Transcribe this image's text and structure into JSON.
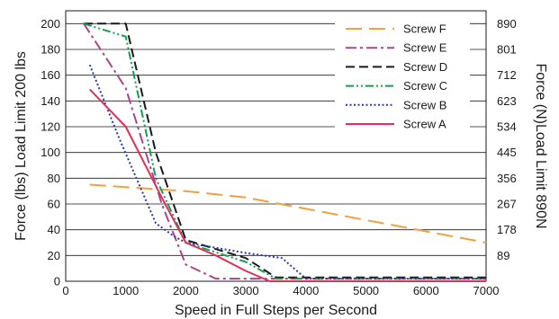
{
  "chart_data": {
    "type": "line",
    "xlabel": "Speed in Full Steps per Second",
    "ylabel": "Force (lbs) Load Limit 200 lbs",
    "y2label": "Force (N)Load Limit 890N",
    "xlim": [
      0,
      7000
    ],
    "ylim": [
      0,
      210
    ],
    "x_ticks": [
      0,
      1000,
      2000,
      3000,
      4000,
      5000,
      6000,
      7000
    ],
    "y_ticks": [
      0,
      20,
      40,
      60,
      80,
      100,
      120,
      140,
      160,
      180,
      200
    ],
    "y2_ticks": [
      {
        "label": "890",
        "value": 200
      },
      {
        "label": "801",
        "value": 180
      },
      {
        "label": "712",
        "value": 160
      },
      {
        "label": "623",
        "value": 140
      },
      {
        "label": "534",
        "value": 120
      },
      {
        "label": "445",
        "value": 100
      },
      {
        "label": "356",
        "value": 80
      },
      {
        "label": "267",
        "value": 60
      },
      {
        "label": "178",
        "value": 40
      },
      {
        "label": "89",
        "value": 20
      }
    ],
    "grid": true,
    "legend_position": "top-right",
    "series": [
      {
        "name": "Screw F",
        "color": "#f0a040",
        "dash": "dashed-long",
        "x": [
          400,
          2000,
          3000,
          7000
        ],
        "y": [
          75,
          70,
          65,
          30
        ]
      },
      {
        "name": "Screw E",
        "color": "#a8468c",
        "dash": "dash-dot",
        "x": [
          300,
          1000,
          1600,
          2000,
          2500,
          3000,
          7000
        ],
        "y": [
          200,
          150,
          60,
          13,
          2,
          2,
          2
        ]
      },
      {
        "name": "Screw D",
        "color": "#1a1a1a",
        "dash": "dashed",
        "x": [
          300,
          1000,
          1500,
          2000,
          3000,
          3500,
          7000
        ],
        "y": [
          200,
          200,
          100,
          32,
          18,
          3,
          3
        ]
      },
      {
        "name": "Screw C",
        "color": "#12a050",
        "dash": "dash-dot-dot",
        "x": [
          300,
          1000,
          1500,
          2000,
          3000,
          3500,
          7000
        ],
        "y": [
          200,
          190,
          80,
          30,
          15,
          2,
          2
        ]
      },
      {
        "name": "Screw B",
        "color": "#2a3a9c",
        "dash": "dotted",
        "x": [
          400,
          900,
          1500,
          1800,
          2000,
          3000,
          3600,
          4000,
          7000
        ],
        "y": [
          168,
          110,
          45,
          35,
          30,
          22,
          18,
          2,
          2
        ]
      },
      {
        "name": "Screw A",
        "color": "#e0305a",
        "dash": "solid",
        "x": [
          400,
          1000,
          1600,
          2000,
          2500,
          3000,
          3400,
          7000
        ],
        "y": [
          149,
          120,
          65,
          30,
          20,
          8,
          0,
          0
        ]
      }
    ]
  }
}
